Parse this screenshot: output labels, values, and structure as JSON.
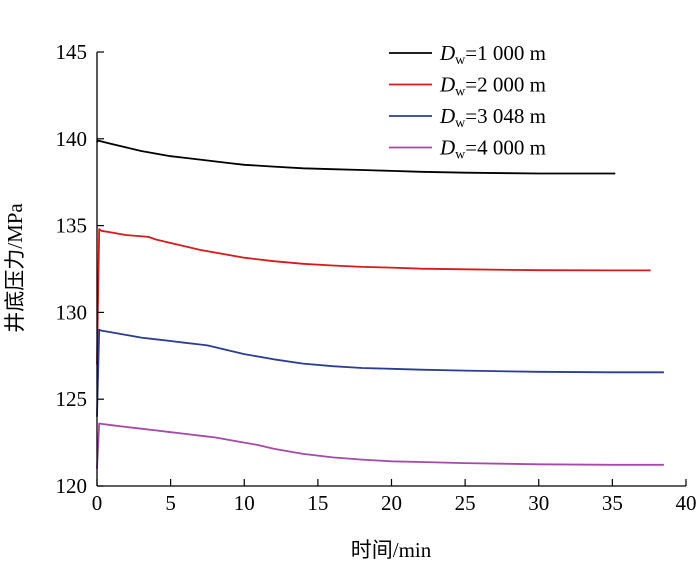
{
  "chart_data": {
    "type": "line",
    "title": "",
    "xlabel": "时间/min",
    "ylabel": "井底压力/MPa",
    "xlim": [
      0,
      40
    ],
    "ylim": [
      120,
      145
    ],
    "xticks": [
      0,
      5,
      10,
      15,
      20,
      25,
      30,
      35,
      40
    ],
    "yticks": [
      120,
      125,
      130,
      135,
      140,
      145
    ],
    "legend_position": "top-right",
    "series": [
      {
        "name_main": "D",
        "name_sub": "w",
        "name_rest": "=1 000 m",
        "color": "#000000",
        "x": [
          0,
          0.05,
          1,
          2,
          3,
          4,
          5,
          6,
          7,
          8,
          9,
          10,
          12,
          14,
          16,
          18,
          20,
          22,
          25,
          28,
          30,
          33,
          35.2
        ],
        "y": [
          139.8,
          139.9,
          139.7,
          139.5,
          139.3,
          139.15,
          139.0,
          138.9,
          138.8,
          138.7,
          138.6,
          138.5,
          138.4,
          138.3,
          138.25,
          138.2,
          138.15,
          138.1,
          138.05,
          138.02,
          138.0,
          138.0,
          138.0
        ]
      },
      {
        "name_main": "D",
        "name_sub": "w",
        "name_rest": "=2 000 m",
        "color": "#d7191c",
        "x": [
          0,
          0.15,
          0.3,
          1,
          2,
          3.5,
          4,
          5,
          6,
          7,
          8,
          10,
          12,
          14,
          16,
          18,
          20,
          22,
          25,
          28,
          30,
          35,
          37.6
        ],
        "y": [
          127.0,
          134.8,
          134.7,
          134.6,
          134.45,
          134.35,
          134.2,
          134.0,
          133.8,
          133.6,
          133.45,
          133.15,
          132.95,
          132.8,
          132.7,
          132.62,
          132.58,
          132.52,
          132.48,
          132.45,
          132.43,
          132.42,
          132.42
        ]
      },
      {
        "name_main": "D",
        "name_sub": "w",
        "name_rest": "=3 048 m",
        "color": "#2b3d91",
        "x": [
          0,
          0.15,
          0.3,
          1,
          2,
          3,
          4,
          5,
          6,
          7,
          7.5,
          8,
          9,
          10,
          12,
          14,
          16,
          18,
          20,
          22,
          25,
          28,
          30,
          35,
          38.5
        ],
        "y": [
          124.0,
          129.0,
          128.95,
          128.85,
          128.7,
          128.55,
          128.45,
          128.35,
          128.25,
          128.15,
          128.1,
          128.0,
          127.8,
          127.6,
          127.3,
          127.05,
          126.9,
          126.8,
          126.75,
          126.7,
          126.65,
          126.6,
          126.58,
          126.55,
          126.55
        ]
      },
      {
        "name_main": "D",
        "name_sub": "w",
        "name_rest": "=4 000 m",
        "color": "#a54aa8",
        "x": [
          0,
          0.15,
          0.3,
          1,
          2,
          3,
          4,
          5,
          6,
          7,
          8,
          9,
          10,
          11,
          12,
          14,
          16,
          18,
          20,
          22,
          25,
          28,
          30,
          35,
          38.5
        ],
        "y": [
          121.0,
          123.6,
          123.58,
          123.5,
          123.4,
          123.3,
          123.2,
          123.1,
          123.0,
          122.9,
          122.8,
          122.65,
          122.5,
          122.35,
          122.15,
          121.85,
          121.65,
          121.52,
          121.42,
          121.38,
          121.32,
          121.28,
          121.25,
          121.22,
          121.22
        ]
      }
    ]
  }
}
